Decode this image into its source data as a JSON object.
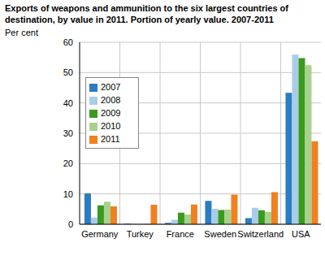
{
  "chart_data": {
    "type": "bar",
    "title": "Exports of weapons and ammunition to the six largest countries of destination, by value in 2011. Portion of yearly value. 2007-2011",
    "y_label": "Per cent",
    "categories": [
      "Germany",
      "Turkey",
      "France",
      "Sweden",
      "Switzerland",
      "USA"
    ],
    "series": [
      {
        "name": "2007",
        "color": "#2a7dc0",
        "values": [
          10.2,
          0.2,
          0.5,
          7.7,
          2.0,
          43.3
        ]
      },
      {
        "name": "2008",
        "color": "#a9cde9",
        "values": [
          2.2,
          0,
          1.5,
          5.1,
          5.4,
          55.9
        ]
      },
      {
        "name": "2009",
        "color": "#3a9a1f",
        "values": [
          6.2,
          0,
          3.8,
          4.7,
          4.6,
          54.8
        ]
      },
      {
        "name": "2010",
        "color": "#a9d18e",
        "values": [
          7.4,
          0.2,
          3.2,
          4.8,
          4.1,
          52.4
        ]
      },
      {
        "name": "2011",
        "color": "#f08020",
        "values": [
          5.9,
          6.4,
          6.5,
          9.8,
          10.6,
          27.3
        ]
      }
    ],
    "ylim": [
      0,
      60
    ],
    "yticks": [
      0,
      10,
      20,
      30,
      40,
      50,
      60
    ],
    "grid": true,
    "legend": "center left"
  }
}
